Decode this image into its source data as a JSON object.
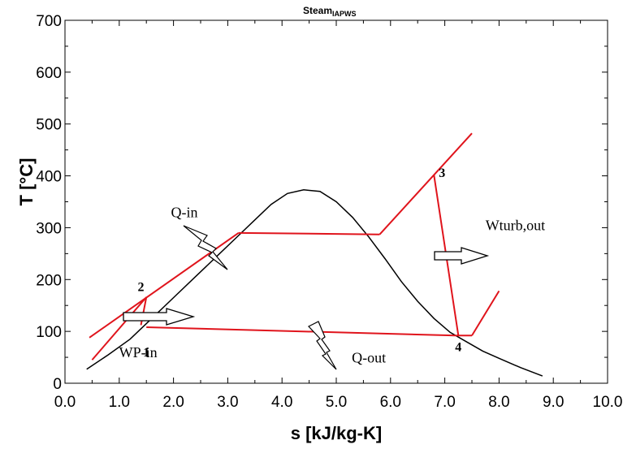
{
  "chart_data": {
    "type": "line",
    "title": "Steam",
    "title_subscript": "IAPWS",
    "xlabel": "s [kJ/kg-K]",
    "ylabel": "T [°C]",
    "xlim": [
      0,
      10
    ],
    "ylim": [
      0,
      700
    ],
    "x_ticks": [
      "0.0",
      "1.0",
      "2.0",
      "3.0",
      "4.0",
      "5.0",
      "6.0",
      "7.0",
      "8.0",
      "9.0",
      "10.0"
    ],
    "y_ticks": [
      "0",
      "100",
      "200",
      "300",
      "400",
      "500",
      "600",
      "700"
    ],
    "grid": false,
    "line_colors": {
      "saturation_dome": "#000000",
      "cycle": "#e0141c"
    },
    "saturation_dome": {
      "x": [
        0.4,
        0.8,
        1.2,
        1.6,
        2.0,
        2.4,
        2.8,
        3.2,
        3.5,
        3.8,
        4.1,
        4.4,
        4.7,
        5.0,
        5.3,
        5.6,
        5.9,
        6.2,
        6.5,
        6.8,
        7.1,
        7.4,
        7.7,
        8.0,
        8.4,
        8.8
      ],
      "y": [
        27,
        55,
        85,
        125,
        165,
        205,
        245,
        285,
        315,
        345,
        366,
        373,
        370,
        350,
        320,
        282,
        240,
        196,
        158,
        125,
        98,
        80,
        62,
        48,
        30,
        14
      ]
    },
    "cycle_segments": [
      {
        "x": [
          0.45,
          3.2
        ],
        "y": [
          88,
          290
        ]
      },
      {
        "x": [
          0.5,
          1.5
        ],
        "y": [
          45,
          166
        ]
      },
      {
        "x": [
          1.5,
          1.4
        ],
        "y": [
          166,
          112
        ]
      },
      {
        "x": [
          3.2,
          5.8
        ],
        "y": [
          290,
          287
        ]
      },
      {
        "x": [
          5.8,
          7.5
        ],
        "y": [
          287,
          482
        ]
      },
      {
        "x": [
          6.8,
          7.25
        ],
        "y": [
          402,
          92
        ]
      },
      {
        "x": [
          1.5,
          7.2
        ],
        "y": [
          108,
          92
        ]
      },
      {
        "x": [
          7.2,
          7.5
        ],
        "y": [
          92,
          92
        ]
      },
      {
        "x": [
          7.5,
          8.0
        ],
        "y": [
          92,
          178
        ]
      }
    ],
    "state_points": [
      {
        "label": "1",
        "x": 1.5,
        "y": 52
      },
      {
        "label": "2",
        "x": 1.4,
        "y": 178
      },
      {
        "label": "3",
        "x": 6.95,
        "y": 398
      },
      {
        "label": "4",
        "x": 7.25,
        "y": 62
      }
    ],
    "annotations": [
      {
        "label": "Q-in",
        "x": 2.2,
        "y": 320
      },
      {
        "label": "WP-in",
        "x": 1.35,
        "y": 50
      },
      {
        "label": "Q-out",
        "x": 5.6,
        "y": 40
      },
      {
        "label": "Wturb,out",
        "x": 8.3,
        "y": 295
      }
    ]
  }
}
